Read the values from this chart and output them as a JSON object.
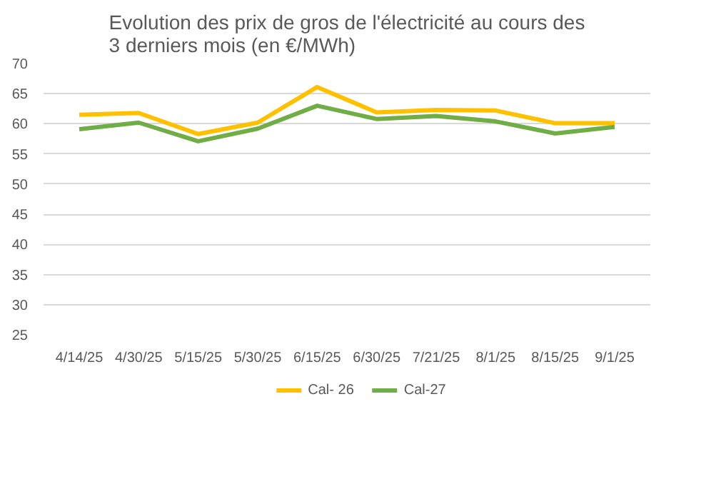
{
  "chart_data": {
    "type": "line",
    "title": "Evolution des prix de gros de l'électricité au cours des\n3 derniers mois (en €/MWh)",
    "categories": [
      "4/14/25",
      "4/30/25",
      "5/15/25",
      "5/30/25",
      "6/15/25",
      "6/30/25",
      "7/21/25",
      "8/1/25",
      "8/15/25",
      "9/1/25"
    ],
    "series": [
      {
        "name": "Cal- 26",
        "color": "#ffc000",
        "values": [
          61.5,
          61.8,
          58.3,
          60.2,
          66.1,
          61.9,
          62.3,
          62.2,
          60.1,
          60.1
        ]
      },
      {
        "name": "Cal-27",
        "color": "#70ad47",
        "values": [
          59.1,
          60.2,
          57.1,
          59.2,
          63.0,
          60.8,
          61.3,
          60.4,
          58.4,
          59.5
        ]
      }
    ],
    "ylim": [
      25,
      70
    ],
    "yticks": [
      25,
      30,
      35,
      40,
      45,
      50,
      55,
      60,
      65,
      70
    ],
    "grid": "y",
    "legend": "bottom",
    "marker": "none",
    "line_style": "solid"
  }
}
